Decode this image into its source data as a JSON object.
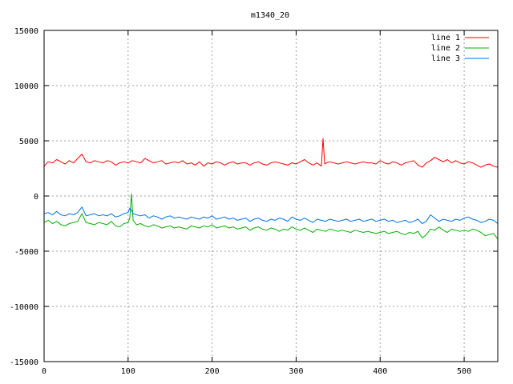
{
  "chart_data": {
    "type": "line",
    "title": "m1340_20",
    "xlabel": "",
    "ylabel": "",
    "xlim": [
      0,
      540
    ],
    "ylim": [
      -15000,
      15000
    ],
    "xticks": [
      0,
      100,
      200,
      300,
      400,
      500
    ],
    "yticks": [
      -15000,
      -10000,
      -5000,
      0,
      5000,
      10000,
      15000
    ],
    "grid": true,
    "legend_position": "top-right",
    "series": [
      {
        "name": "line 1",
        "color": "#ff0000",
        "x": [
          0,
          5,
          10,
          15,
          20,
          25,
          30,
          35,
          40,
          45,
          50,
          55,
          60,
          65,
          70,
          75,
          80,
          85,
          90,
          95,
          100,
          105,
          110,
          115,
          120,
          125,
          130,
          135,
          140,
          145,
          150,
          155,
          160,
          165,
          170,
          175,
          180,
          185,
          190,
          195,
          200,
          205,
          210,
          215,
          220,
          225,
          230,
          235,
          240,
          245,
          250,
          255,
          260,
          265,
          270,
          275,
          280,
          285,
          290,
          295,
          300,
          305,
          310,
          315,
          320,
          325,
          330,
          332,
          334,
          336,
          340,
          345,
          350,
          355,
          360,
          365,
          370,
          375,
          380,
          385,
          390,
          395,
          400,
          405,
          410,
          415,
          420,
          425,
          430,
          435,
          440,
          445,
          450,
          455,
          460,
          465,
          470,
          475,
          480,
          485,
          490,
          495,
          500,
          505,
          510,
          515,
          520,
          525,
          530,
          535,
          540
        ],
        "values": [
          2700,
          3100,
          3000,
          3300,
          3100,
          2900,
          3200,
          3000,
          3400,
          3800,
          3100,
          3000,
          3200,
          3100,
          3000,
          3200,
          3100,
          2800,
          3000,
          3100,
          3000,
          3200,
          3100,
          3000,
          3400,
          3200,
          3000,
          3100,
          3200,
          2900,
          3000,
          3100,
          3000,
          3200,
          2900,
          3000,
          2800,
          3100,
          2700,
          3000,
          2900,
          3100,
          3000,
          2800,
          3000,
          3100,
          2900,
          3000,
          3000,
          2800,
          3000,
          3100,
          2900,
          2800,
          3000,
          3100,
          3000,
          2900,
          2800,
          3000,
          2900,
          3100,
          3300,
          3000,
          2800,
          3000,
          2700,
          5200,
          2900,
          3000,
          3100,
          3000,
          2900,
          3000,
          3100,
          3000,
          2900,
          3000,
          3100,
          3000,
          3000,
          2900,
          3200,
          3000,
          2900,
          3100,
          3000,
          2800,
          3000,
          3100,
          3200,
          2800,
          2600,
          3000,
          3200,
          3500,
          3300,
          3100,
          3300,
          3000,
          3200,
          3000,
          2900,
          3100,
          3000,
          2800,
          2600,
          2800,
          2900,
          2700,
          2600
        ]
      },
      {
        "name": "line 2",
        "color": "#00b000",
        "x": [
          0,
          5,
          10,
          15,
          20,
          25,
          30,
          35,
          40,
          45,
          50,
          55,
          60,
          65,
          70,
          75,
          80,
          85,
          90,
          95,
          100,
          102,
          104,
          106,
          110,
          115,
          120,
          125,
          130,
          135,
          140,
          145,
          150,
          155,
          160,
          165,
          170,
          175,
          180,
          185,
          190,
          195,
          200,
          205,
          210,
          215,
          220,
          225,
          230,
          235,
          240,
          245,
          250,
          255,
          260,
          265,
          270,
          275,
          280,
          285,
          290,
          295,
          300,
          305,
          310,
          315,
          320,
          325,
          330,
          335,
          340,
          345,
          350,
          355,
          360,
          365,
          370,
          375,
          380,
          385,
          390,
          395,
          400,
          405,
          410,
          415,
          420,
          425,
          430,
          435,
          440,
          445,
          450,
          455,
          460,
          465,
          470,
          475,
          480,
          485,
          490,
          495,
          500,
          505,
          510,
          515,
          520,
          525,
          530,
          535,
          540
        ],
        "values": [
          -2400,
          -2200,
          -2500,
          -2300,
          -2600,
          -2700,
          -2500,
          -2400,
          -2300,
          -1600,
          -2400,
          -2500,
          -2600,
          -2400,
          -2500,
          -2600,
          -2300,
          -2700,
          -2800,
          -2500,
          -2400,
          -2000,
          200,
          -2200,
          -2600,
          -2500,
          -2700,
          -2800,
          -2600,
          -2700,
          -2900,
          -2800,
          -2700,
          -2900,
          -2800,
          -2900,
          -3000,
          -2700,
          -2800,
          -2900,
          -2700,
          -2800,
          -2600,
          -2900,
          -2800,
          -2700,
          -2900,
          -2800,
          -3000,
          -2900,
          -2800,
          -3100,
          -2900,
          -2800,
          -3000,
          -3100,
          -2900,
          -3000,
          -3200,
          -3000,
          -3100,
          -2800,
          -3000,
          -3100,
          -2900,
          -3100,
          -3300,
          -3000,
          -3100,
          -3200,
          -3000,
          -3100,
          -3200,
          -3100,
          -3200,
          -3300,
          -3100,
          -3200,
          -3300,
          -3200,
          -3300,
          -3400,
          -3300,
          -3200,
          -3400,
          -3300,
          -3200,
          -3400,
          -3500,
          -3300,
          -3400,
          -3200,
          -3800,
          -3500,
          -3000,
          -3100,
          -2800,
          -3100,
          -3300,
          -3000,
          -3100,
          -3200,
          -3100,
          -3200,
          -3000,
          -3100,
          -3300,
          -3600,
          -3500,
          -3400,
          -3900
        ]
      },
      {
        "name": "line 3",
        "color": "#0070e0",
        "x": [
          0,
          5,
          10,
          15,
          20,
          25,
          30,
          35,
          40,
          45,
          50,
          55,
          60,
          65,
          70,
          75,
          80,
          85,
          90,
          95,
          100,
          102,
          104,
          106,
          110,
          115,
          120,
          125,
          130,
          135,
          140,
          145,
          150,
          155,
          160,
          165,
          170,
          175,
          180,
          185,
          190,
          195,
          200,
          205,
          210,
          215,
          220,
          225,
          230,
          235,
          240,
          245,
          250,
          255,
          260,
          265,
          270,
          275,
          280,
          285,
          290,
          295,
          300,
          305,
          310,
          315,
          320,
          325,
          330,
          335,
          340,
          345,
          350,
          355,
          360,
          365,
          370,
          375,
          380,
          385,
          390,
          395,
          400,
          405,
          410,
          415,
          420,
          425,
          430,
          435,
          440,
          445,
          450,
          455,
          460,
          465,
          470,
          475,
          480,
          485,
          490,
          495,
          500,
          505,
          510,
          515,
          520,
          525,
          530,
          535,
          540
        ],
        "values": [
          -1600,
          -1500,
          -1700,
          -1400,
          -1700,
          -1800,
          -1600,
          -1700,
          -1500,
          -1000,
          -1800,
          -1700,
          -1600,
          -1800,
          -1700,
          -1800,
          -1600,
          -1900,
          -1800,
          -1600,
          -1500,
          -1100,
          -1300,
          -1600,
          -1700,
          -1800,
          -1700,
          -2000,
          -1800,
          -1900,
          -2100,
          -1900,
          -1800,
          -2000,
          -1900,
          -2000,
          -2100,
          -1900,
          -2000,
          -2100,
          -1900,
          -2000,
          -1800,
          -2100,
          -2000,
          -1900,
          -2100,
          -2000,
          -2200,
          -2100,
          -2000,
          -2300,
          -2100,
          -2000,
          -2200,
          -2300,
          -2100,
          -2200,
          -2000,
          -2100,
          -2300,
          -1900,
          -2100,
          -2200,
          -2000,
          -2200,
          -2400,
          -2100,
          -2200,
          -2300,
          -2100,
          -2200,
          -2300,
          -2200,
          -2100,
          -2300,
          -2200,
          -2100,
          -2300,
          -2200,
          -2100,
          -2300,
          -2200,
          -2100,
          -2300,
          -2200,
          -2400,
          -2300,
          -2200,
          -2400,
          -2300,
          -2100,
          -2500,
          -2300,
          -1700,
          -2000,
          -2300,
          -2100,
          -2200,
          -2300,
          -2100,
          -2200,
          -2000,
          -1900,
          -2100,
          -2200,
          -2400,
          -2300,
          -2100,
          -2200,
          -2500
        ]
      }
    ]
  }
}
